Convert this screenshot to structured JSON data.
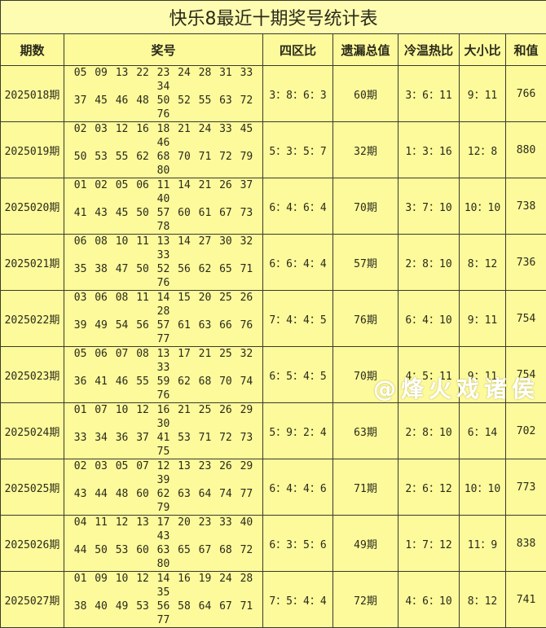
{
  "title": "快乐8最近十期奖号统计表",
  "headers": [
    "期数",
    "奖号",
    "四区比",
    "遗漏总值",
    "冷温热比",
    "大小比",
    "和值"
  ],
  "rows": [
    {
      "period": "2025018期",
      "line1": "05 09 13 22 23 24 28 31 33 34",
      "line2": "37 45 46 48 50 52 55 63 72 76",
      "zone": "3：8：6：3",
      "miss": "60期",
      "cwh": "3：6：11",
      "bs": "9：11",
      "sum": "766"
    },
    {
      "period": "2025019期",
      "line1": "02 03 12 16 18 21 24 33 45 46",
      "line2": "50 53 55 62 68 70 71 72 79 80",
      "zone": "5：3：5：7",
      "miss": "32期",
      "cwh": "1：3：16",
      "bs": "12：8",
      "sum": "880"
    },
    {
      "period": "2025020期",
      "line1": "01 02 05 06 11 14 21 26 37 40",
      "line2": "41 43 45 50 57 60 61 67 73 78",
      "zone": "6：4：6：4",
      "miss": "70期",
      "cwh": "3：7：10",
      "bs": "10：10",
      "sum": "738"
    },
    {
      "period": "2025021期",
      "line1": "06 08 10 11 13 14 27 30 32 33",
      "line2": "35 38 47 50 52 56 62 65 71 76",
      "zone": "6：6：4：4",
      "miss": "57期",
      "cwh": "2：8：10",
      "bs": "8：12",
      "sum": "736"
    },
    {
      "period": "2025022期",
      "line1": "03 06 08 11 14 15 20 25 26 28",
      "line2": "39 49 54 56 57 61 63 66 76 77",
      "zone": "7：4：4：5",
      "miss": "76期",
      "cwh": "6：4：10",
      "bs": "9：11",
      "sum": "754"
    },
    {
      "period": "2025023期",
      "line1": "05 06 07 08 13 17 21 25 32 33",
      "line2": "36 41 46 55 59 62 68 70 74 76",
      "zone": "6：5：4：5",
      "miss": "70期",
      "cwh": "4：5：11",
      "bs": "9：11",
      "sum": "754"
    },
    {
      "period": "2025024期",
      "line1": "01 07 10 12 16 21 25 26 29 30",
      "line2": "33 34 36 37 41 53 71 72 73 75",
      "zone": "5：9：2：4",
      "miss": "63期",
      "cwh": "2：8：10",
      "bs": "6：14",
      "sum": "702"
    },
    {
      "period": "2025025期",
      "line1": "02 03 05 07 12 13 23 26 29 39",
      "line2": "43 44 48 60 62 63 64 74 77 79",
      "zone": "6：4：4：6",
      "miss": "71期",
      "cwh": "2：6：12",
      "bs": "10：10",
      "sum": "773"
    },
    {
      "period": "2025026期",
      "line1": "04 11 12 13 17 20 23 33 40 43",
      "line2": "44 50 53 60 63 65 67 68 72 80",
      "zone": "6：3：5：6",
      "miss": "49期",
      "cwh": "1：7：12",
      "bs": "11：9",
      "sum": "838"
    },
    {
      "period": "2025027期",
      "line1": "01 09 10 12 14 16 19 24 28 35",
      "line2": "38 40 49 53 56 58 64 67 71 77",
      "zone": "7：5：4：4",
      "miss": "72期",
      "cwh": "4：6：10",
      "bs": "8：12",
      "sum": "741"
    }
  ],
  "watermark": "@烽火戏诸侯"
}
